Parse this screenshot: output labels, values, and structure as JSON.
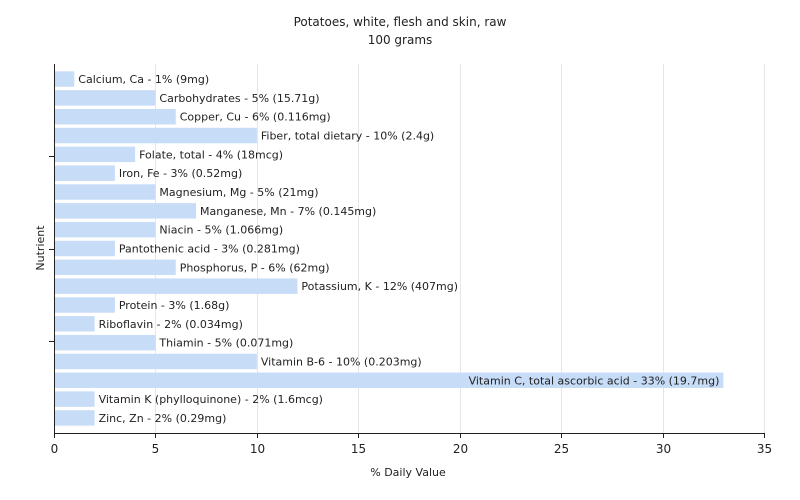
{
  "chart_data": {
    "type": "bar",
    "orientation": "horizontal",
    "title": "Potatoes, white, flesh and skin, raw",
    "subtitle": "100 grams",
    "xlabel": "% Daily Value",
    "ylabel": "Nutrient",
    "xlim": [
      0,
      35
    ],
    "xticks": [
      0,
      5,
      10,
      15,
      20,
      25,
      30,
      35
    ],
    "grid": true,
    "legend": "none",
    "bar_color": "#c6dcf7",
    "grid_color": "#e6e6e6",
    "categories": [
      "Calcium, Ca",
      "Carbohydrates",
      "Copper, Cu",
      "Fiber, total dietary",
      "Folate, total",
      "Iron, Fe",
      "Magnesium, Mg",
      "Manganese, Mn",
      "Niacin",
      "Pantothenic acid",
      "Phosphorus, P",
      "Potassium, K",
      "Protein",
      "Riboflavin",
      "Thiamin",
      "Vitamin B-6",
      "Vitamin C, total ascorbic acid",
      "Vitamin K (phylloquinone)",
      "Zinc, Zn"
    ],
    "values": [
      1,
      5,
      6,
      10,
      4,
      3,
      5,
      7,
      5,
      3,
      6,
      12,
      3,
      2,
      5,
      10,
      33,
      2,
      2
    ],
    "labels": [
      "Calcium, Ca - 1% (9mg)",
      "Carbohydrates - 5% (15.71g)",
      "Copper, Cu - 6% (0.116mg)",
      "Fiber, total dietary - 10% (2.4g)",
      "Folate, total - 4% (18mcg)",
      "Iron, Fe - 3% (0.52mg)",
      "Magnesium, Mg - 5% (21mg)",
      "Manganese, Mn - 7% (0.145mg)",
      "Niacin - 5% (1.066mg)",
      "Pantothenic acid - 3% (0.281mg)",
      "Phosphorus, P - 6% (62mg)",
      "Potassium, K - 12% (407mg)",
      "Protein - 3% (1.68g)",
      "Riboflavin - 2% (0.034mg)",
      "Thiamin - 5% (0.071mg)",
      "Vitamin B-6 - 10% (0.203mg)",
      "Vitamin C, total ascorbic acid - 33% (19.7mg)",
      "Vitamin K (phylloquinone) - 2% (1.6mcg)",
      "Zinc, Zn - 2% (0.29mg)"
    ]
  }
}
